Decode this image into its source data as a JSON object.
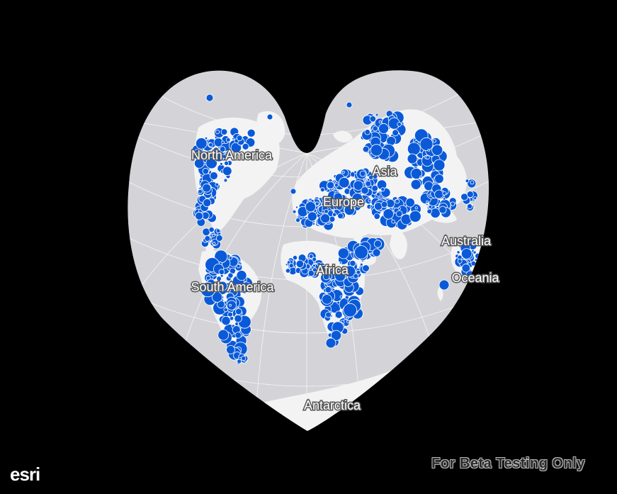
{
  "map": {
    "projection": "Bonne (heart-shaped)",
    "background": "#000000",
    "ocean_color": "#d4d4d8",
    "land_color": "#f2f2f2",
    "symbol_color": "#0a5ad8",
    "labels": {
      "north_america": "North America",
      "south_america": "South America",
      "europe": "Europe",
      "asia": "Asia",
      "africa": "Africa",
      "australia": "Australia",
      "oceania": "Oceania",
      "antarctica": "Antarctica"
    }
  },
  "footer": {
    "beta_notice": "For  Beta Testing Only",
    "logo_text": "esri"
  }
}
